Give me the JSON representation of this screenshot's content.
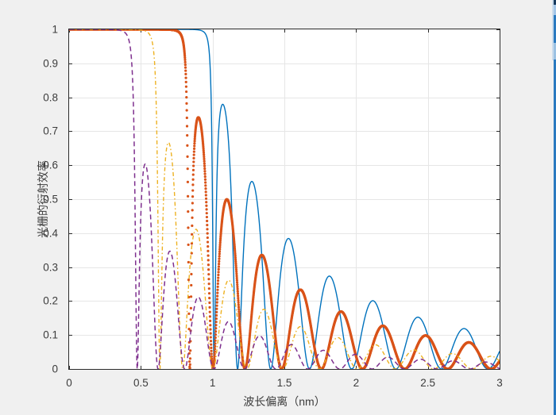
{
  "figure": {
    "background": "#F0F0F0",
    "plot_background": "#FFFFFF",
    "grid_color": "#E6E6E6",
    "axis_color": "#2B2B2B",
    "tick_label_color": "#3C3C3C",
    "label_color": "#3C3C3C",
    "window_edge_colors": {
      "base": "#2A7AC0",
      "dark_top": "#173A5E",
      "light_a": "#A3C6E8",
      "light_b": "#9CC2E3",
      "pale_column": "#CDDDEC"
    }
  },
  "chart_data": {
    "type": "line",
    "title": "",
    "xlabel": "波长偏离（nm）",
    "ylabel": "光栅的衍射效率",
    "xlim": [
      0,
      3
    ],
    "ylim": [
      0,
      1
    ],
    "xticks": [
      "0",
      "0.5",
      "1",
      "1.5",
      "2",
      "2.5",
      "3"
    ],
    "yticks": [
      "0",
      "0.1",
      "0.2",
      "0.3",
      "0.4",
      "0.5",
      "0.6",
      "0.7",
      "0.8",
      "0.9",
      "1"
    ],
    "grid": true,
    "legend": "none",
    "model_note": "Each curve is a grating (FBG-style) diffraction efficiency vs wavelength detuning x: inside stop band R=sinh^2(sL)/(sinh^2(sL)+(s/k)^2) with s=sqrt(k^2-x^2); outside R=sin^2(qL)/(sin^2(qL)+(q/k)^2) with q=sqrt(x^2-k^2); L=pi/d. Curves plateau at 1 for x<k then show decaying sidelobes with envelope k^2/x^2.",
    "series": [
      {
        "name": "series-1-solid-blue",
        "color": "#0072BD",
        "line_style": "solid",
        "line_width": 1.4,
        "dash": [],
        "k_band_edge_nm": 0.95,
        "d_zero_spacing_nm": 0.345,
        "plateau_y": 1,
        "plateau_x_end": 0.95,
        "first_zero_x": 1.01,
        "sidelobe_peaks_x": [
          1.08,
          1.28,
          1.54,
          1.82,
          2.12,
          2.44,
          2.76
        ],
        "sidelobe_peaks_y": [
          0.77,
          0.55,
          0.38,
          0.27,
          0.2,
          0.15,
          0.12
        ]
      },
      {
        "name": "series-2-dotted-orange",
        "color": "#D95319",
        "line_style": "dotted-marker",
        "line_width": 3.2,
        "marker_radius": 1.6,
        "sample_step_nm": 0.001,
        "k_band_edge_nm": 0.78,
        "d_zero_spacing_nm": 0.315,
        "plateau_y": 1,
        "plateau_x_end": 0.78,
        "first_zero_x": 0.84,
        "sidelobe_peaks_x": [
          0.92,
          1.11,
          1.35,
          1.62,
          1.9,
          2.19,
          2.49,
          2.79
        ],
        "sidelobe_peaks_y": [
          0.72,
          0.49,
          0.33,
          0.23,
          0.17,
          0.13,
          0.1,
          0.08
        ]
      },
      {
        "name": "series-3-dashdot-yellow",
        "color": "#EDB120",
        "line_style": "dash-dot",
        "line_width": 1.4,
        "dash": [
          5,
          3,
          1.5,
          3
        ],
        "k_band_edge_nm": 0.57,
        "d_zero_spacing_nm": 0.275,
        "plateau_y": 1,
        "plateau_x_end": 0.57,
        "first_zero_x": 0.63,
        "sidelobe_peaks_x": [
          0.71,
          0.9,
          1.12,
          1.36,
          1.62,
          1.88,
          2.14,
          2.41,
          2.68,
          2.95
        ],
        "sidelobe_peaks_y": [
          0.64,
          0.4,
          0.26,
          0.18,
          0.12,
          0.09,
          0.07,
          0.06,
          0.05,
          0.04
        ]
      },
      {
        "name": "series-4-dashed-purple",
        "color": "#7E2F8E",
        "line_style": "dashed",
        "line_width": 1.5,
        "dash": [
          6,
          4
        ],
        "k_band_edge_nm": 0.4156,
        "d_zero_spacing_nm": 0.23,
        "plateau_y": 1,
        "plateau_x_end": 0.42,
        "first_zero_x": 0.49,
        "sidelobe_peaks_x": [
          0.55,
          0.71,
          0.9,
          1.11,
          1.33,
          1.55,
          1.78,
          2.01,
          2.25,
          2.48,
          2.72,
          2.96
        ],
        "sidelobe_peaks_y": [
          0.58,
          0.34,
          0.21,
          0.14,
          0.1,
          0.07,
          0.05,
          0.04,
          0.03,
          0.03,
          0.02,
          0.02
        ]
      }
    ]
  }
}
